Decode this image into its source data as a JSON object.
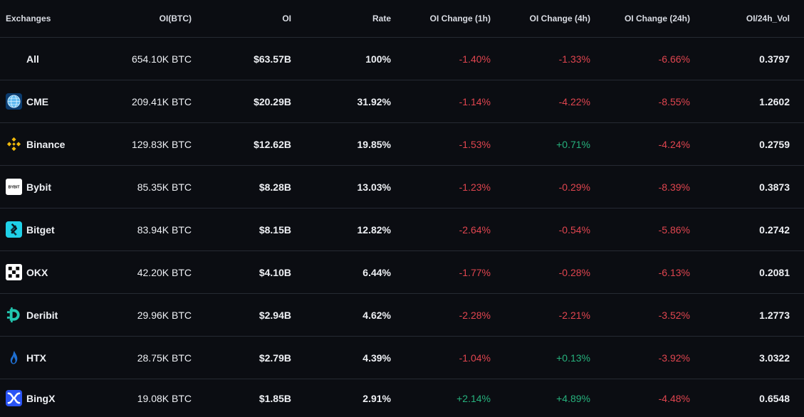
{
  "columns": {
    "exchanges": "Exchanges",
    "oi_btc": "OI(BTC)",
    "oi": "OI",
    "rate": "Rate",
    "change_1h": "OI Change (1h)",
    "change_4h": "OI Change (4h)",
    "change_24h": "OI Change (24h)",
    "oi_vol": "OI/24h_Vol"
  },
  "colors": {
    "negative": "#e0454f",
    "positive": "#26b27d",
    "background": "#0b0d12"
  },
  "rows": [
    {
      "name": "All",
      "icon": "none",
      "oi_btc": "654.10K BTC",
      "oi": "$63.57B",
      "rate": "100%",
      "c1h": "-1.40%",
      "c4h": "-1.33%",
      "c24h": "-6.66%",
      "vol": "0.3797"
    },
    {
      "name": "CME",
      "icon": "cme-globe-icon",
      "oi_btc": "209.41K BTC",
      "oi": "$20.29B",
      "rate": "31.92%",
      "c1h": "-1.14%",
      "c4h": "-4.22%",
      "c24h": "-8.55%",
      "vol": "1.2602"
    },
    {
      "name": "Binance",
      "icon": "binance-icon",
      "oi_btc": "129.83K BTC",
      "oi": "$12.62B",
      "rate": "19.85%",
      "c1h": "-1.53%",
      "c4h": "+0.71%",
      "c24h": "-4.24%",
      "vol": "0.2759"
    },
    {
      "name": "Bybit",
      "icon": "bybit-icon",
      "icon_text": "BYBIT",
      "oi_btc": "85.35K BTC",
      "oi": "$8.28B",
      "rate": "13.03%",
      "c1h": "-1.23%",
      "c4h": "-0.29%",
      "c24h": "-8.39%",
      "vol": "0.3873"
    },
    {
      "name": "Bitget",
      "icon": "bitget-icon",
      "oi_btc": "83.94K BTC",
      "oi": "$8.15B",
      "rate": "12.82%",
      "c1h": "-2.64%",
      "c4h": "-0.54%",
      "c24h": "-5.86%",
      "vol": "0.2742"
    },
    {
      "name": "OKX",
      "icon": "okx-icon",
      "oi_btc": "42.20K BTC",
      "oi": "$4.10B",
      "rate": "6.44%",
      "c1h": "-1.77%",
      "c4h": "-0.28%",
      "c24h": "-6.13%",
      "vol": "0.2081"
    },
    {
      "name": "Deribit",
      "icon": "deribit-icon",
      "oi_btc": "29.96K BTC",
      "oi": "$2.94B",
      "rate": "4.62%",
      "c1h": "-2.28%",
      "c4h": "-2.21%",
      "c24h": "-3.52%",
      "vol": "1.2773"
    },
    {
      "name": "HTX",
      "icon": "htx-flame-icon",
      "oi_btc": "28.75K BTC",
      "oi": "$2.79B",
      "rate": "4.39%",
      "c1h": "-1.04%",
      "c4h": "+0.13%",
      "c24h": "-3.92%",
      "vol": "3.0322"
    },
    {
      "name": "BingX",
      "icon": "bingx-icon",
      "oi_btc": "19.08K BTC",
      "oi": "$1.85B",
      "rate": "2.91%",
      "c1h": "+2.14%",
      "c4h": "+4.89%",
      "c24h": "-4.48%",
      "vol": "0.6548"
    }
  ]
}
